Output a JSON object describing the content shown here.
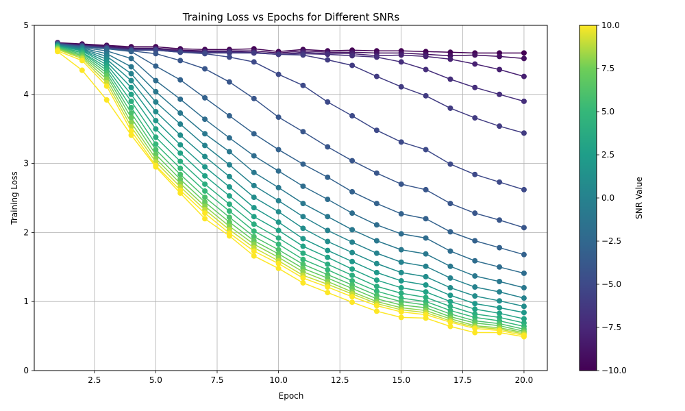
{
  "chart_data": {
    "type": "line",
    "title": "Training Loss vs Epochs for Different SNRs",
    "xlabel": "Epoch",
    "ylabel": "Training Loss",
    "xlim": [
      0.05,
      20.95
    ],
    "ylim": [
      0,
      5
    ],
    "xticks": [
      2.5,
      5.0,
      7.5,
      10.0,
      12.5,
      15.0,
      17.5,
      20.0
    ],
    "xtick_labels": [
      "2.5",
      "5.0",
      "7.5",
      "10.0",
      "12.5",
      "15.0",
      "17.5",
      "20.0"
    ],
    "yticks": [
      0,
      1,
      2,
      3,
      4,
      5
    ],
    "ytick_labels": [
      "0",
      "1",
      "2",
      "3",
      "4",
      "5"
    ],
    "grid": true,
    "colormap": "viridis",
    "markers": true,
    "x": [
      1,
      2,
      3,
      4,
      5,
      6,
      7,
      8,
      9,
      10,
      11,
      12,
      13,
      14,
      15,
      16,
      17,
      18,
      19,
      20
    ],
    "colorbar": {
      "label": "SNR Value",
      "range": [
        -10,
        10
      ],
      "ticks": [
        -10.0,
        -7.5,
        -5.0,
        -2.5,
        0.0,
        2.5,
        5.0,
        7.5,
        10.0
      ],
      "tick_labels": [
        "−10.0",
        "−7.5",
        "−5.0",
        "−2.5",
        "0.0",
        "2.5",
        "5.0",
        "7.5",
        "10.0"
      ]
    },
    "series": [
      {
        "snr": -10,
        "values": [
          4.75,
          4.73,
          4.71,
          4.69,
          4.69,
          4.66,
          4.65,
          4.65,
          4.66,
          4.62,
          4.65,
          4.63,
          4.64,
          4.63,
          4.63,
          4.62,
          4.61,
          4.6,
          4.6,
          4.6
        ]
      },
      {
        "snr": -9,
        "values": [
          4.74,
          4.72,
          4.7,
          4.67,
          4.67,
          4.64,
          4.63,
          4.63,
          4.63,
          4.6,
          4.63,
          4.61,
          4.61,
          4.6,
          4.6,
          4.58,
          4.56,
          4.57,
          4.55,
          4.52
        ]
      },
      {
        "snr": -8,
        "values": [
          4.74,
          4.71,
          4.69,
          4.66,
          4.66,
          4.63,
          4.62,
          4.62,
          4.61,
          4.58,
          4.61,
          4.59,
          4.59,
          4.56,
          4.57,
          4.55,
          4.51,
          4.44,
          4.36,
          4.26
        ]
      },
      {
        "snr": -7,
        "values": [
          4.74,
          4.71,
          4.68,
          4.65,
          4.65,
          4.62,
          4.61,
          4.61,
          4.6,
          4.58,
          4.59,
          4.58,
          4.56,
          4.54,
          4.47,
          4.36,
          4.22,
          4.1,
          4.0,
          3.9
        ]
      },
      {
        "snr": -6,
        "values": [
          4.74,
          4.7,
          4.67,
          4.64,
          4.64,
          4.61,
          4.6,
          4.6,
          4.6,
          4.58,
          4.57,
          4.5,
          4.42,
          4.26,
          4.11,
          3.98,
          3.8,
          3.66,
          3.54,
          3.44
        ]
      },
      {
        "snr": -5,
        "values": [
          4.73,
          4.7,
          4.67,
          4.64,
          4.64,
          4.61,
          4.59,
          4.54,
          4.47,
          4.29,
          4.13,
          3.89,
          3.69,
          3.48,
          3.31,
          3.2,
          2.99,
          2.84,
          2.73,
          2.62
        ]
      },
      {
        "snr": -4,
        "values": [
          4.73,
          4.69,
          4.66,
          4.63,
          4.59,
          4.49,
          4.37,
          4.18,
          3.94,
          3.67,
          3.46,
          3.24,
          3.04,
          2.86,
          2.7,
          2.62,
          2.42,
          2.28,
          2.18,
          2.07
        ]
      },
      {
        "snr": -3,
        "values": [
          4.73,
          4.69,
          4.66,
          4.62,
          4.41,
          4.21,
          3.95,
          3.69,
          3.43,
          3.2,
          2.99,
          2.8,
          2.59,
          2.42,
          2.27,
          2.2,
          2.01,
          1.88,
          1.78,
          1.68
        ]
      },
      {
        "snr": -2,
        "values": [
          4.72,
          4.68,
          4.63,
          4.52,
          4.2,
          3.93,
          3.64,
          3.37,
          3.11,
          2.89,
          2.67,
          2.48,
          2.28,
          2.11,
          1.98,
          1.92,
          1.73,
          1.59,
          1.5,
          1.41
        ]
      },
      {
        "snr": -1,
        "values": [
          4.72,
          4.67,
          4.59,
          4.4,
          4.04,
          3.73,
          3.43,
          3.17,
          2.87,
          2.65,
          2.42,
          2.23,
          2.04,
          1.88,
          1.75,
          1.69,
          1.51,
          1.37,
          1.29,
          1.2
        ]
      },
      {
        "snr": 0,
        "values": [
          4.71,
          4.66,
          4.55,
          4.3,
          3.89,
          3.57,
          3.26,
          2.98,
          2.68,
          2.46,
          2.23,
          2.03,
          1.86,
          1.7,
          1.57,
          1.51,
          1.34,
          1.21,
          1.14,
          1.05
        ]
      },
      {
        "snr": 1,
        "values": [
          4.71,
          4.65,
          4.51,
          4.2,
          3.75,
          3.41,
          3.1,
          2.81,
          2.51,
          2.3,
          2.06,
          1.87,
          1.71,
          1.55,
          1.42,
          1.36,
          1.2,
          1.08,
          1.01,
          0.93
        ]
      },
      {
        "snr": 2,
        "values": [
          4.7,
          4.64,
          4.47,
          4.1,
          3.62,
          3.27,
          2.95,
          2.66,
          2.36,
          2.15,
          1.91,
          1.74,
          1.58,
          1.42,
          1.3,
          1.24,
          1.09,
          0.97,
          0.91,
          0.84
        ]
      },
      {
        "snr": 3,
        "values": [
          4.7,
          4.63,
          4.43,
          4.0,
          3.5,
          3.15,
          2.82,
          2.53,
          2.23,
          2.03,
          1.8,
          1.64,
          1.47,
          1.31,
          1.2,
          1.14,
          1.0,
          0.89,
          0.83,
          0.75
        ]
      },
      {
        "snr": 4,
        "values": [
          4.69,
          4.61,
          4.39,
          3.9,
          3.38,
          3.03,
          2.7,
          2.41,
          2.12,
          1.92,
          1.7,
          1.54,
          1.38,
          1.22,
          1.12,
          1.06,
          0.93,
          0.82,
          0.77,
          0.69
        ]
      },
      {
        "snr": 5,
        "values": [
          4.69,
          4.6,
          4.35,
          3.81,
          3.28,
          2.93,
          2.6,
          2.31,
          2.02,
          1.83,
          1.61,
          1.46,
          1.3,
          1.15,
          1.05,
          1.0,
          0.87,
          0.77,
          0.72,
          0.64
        ]
      },
      {
        "snr": 6,
        "values": [
          4.68,
          4.58,
          4.31,
          3.73,
          3.2,
          2.84,
          2.51,
          2.22,
          1.94,
          1.75,
          1.54,
          1.39,
          1.24,
          1.09,
          1.0,
          0.95,
          0.82,
          0.72,
          0.68,
          0.6
        ]
      },
      {
        "snr": 7,
        "values": [
          4.67,
          4.56,
          4.27,
          3.66,
          3.13,
          2.77,
          2.44,
          2.15,
          1.88,
          1.69,
          1.48,
          1.34,
          1.19,
          1.04,
          0.95,
          0.91,
          0.78,
          0.69,
          0.65,
          0.57
        ]
      },
      {
        "snr": 8,
        "values": [
          4.66,
          4.54,
          4.22,
          3.59,
          3.07,
          2.71,
          2.38,
          2.09,
          1.83,
          1.64,
          1.43,
          1.29,
          1.14,
          1.0,
          0.91,
          0.87,
          0.75,
          0.65,
          0.62,
          0.55
        ]
      },
      {
        "snr": 9,
        "values": [
          4.65,
          4.52,
          4.17,
          3.53,
          3.02,
          2.66,
          2.33,
          2.04,
          1.78,
          1.59,
          1.38,
          1.25,
          1.11,
          0.97,
          0.88,
          0.84,
          0.72,
          0.63,
          0.6,
          0.53
        ]
      },
      {
        "snr": 10,
        "values": [
          4.63,
          4.49,
          4.12,
          3.47,
          2.97,
          2.61,
          2.28,
          1.99,
          1.73,
          1.55,
          1.34,
          1.21,
          1.07,
          0.94,
          0.85,
          0.81,
          0.7,
          0.61,
          0.58,
          0.51
        ]
      },
      {
        "snr": 10,
        "values": [
          4.62,
          4.35,
          3.92,
          3.41,
          2.95,
          2.57,
          2.2,
          1.95,
          1.66,
          1.48,
          1.27,
          1.13,
          0.99,
          0.86,
          0.77,
          0.76,
          0.64,
          0.55,
          0.55,
          0.49
        ]
      }
    ]
  }
}
